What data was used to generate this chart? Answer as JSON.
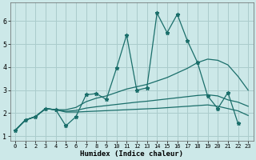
{
  "bg_color": "#cce8e8",
  "grid_color": "#aacccc",
  "line_color": "#1a6e6a",
  "xlabel": "Humidex (Indice chaleur)",
  "xlim": [
    -0.5,
    23.5
  ],
  "ylim": [
    0.8,
    6.8
  ],
  "yticks": [
    1,
    2,
    3,
    4,
    5,
    6
  ],
  "xticks": [
    0,
    1,
    2,
    3,
    4,
    5,
    6,
    7,
    8,
    9,
    10,
    11,
    12,
    13,
    14,
    15,
    16,
    17,
    18,
    19,
    20,
    21,
    22,
    23
  ],
  "line1_x": [
    0,
    1,
    2,
    3,
    4,
    5,
    6,
    7,
    8,
    9,
    10,
    11,
    12,
    13,
    14,
    15,
    16,
    17,
    18,
    19,
    20,
    21,
    22
  ],
  "line1_y": [
    1.25,
    1.7,
    1.85,
    2.2,
    2.15,
    1.45,
    1.85,
    2.8,
    2.85,
    2.6,
    3.95,
    5.4,
    3.0,
    3.1,
    6.35,
    5.5,
    6.3,
    5.15,
    4.2,
    2.75,
    2.2,
    2.9,
    1.55
  ],
  "line2_x": [
    0,
    1,
    2,
    3,
    4,
    5,
    6,
    7,
    8,
    9,
    10,
    11,
    12,
    13,
    14,
    15,
    16,
    17,
    18,
    19,
    20,
    21,
    22,
    23
  ],
  "line2_y": [
    1.25,
    1.7,
    1.85,
    2.2,
    2.15,
    2.15,
    2.25,
    2.5,
    2.65,
    2.75,
    2.9,
    3.05,
    3.15,
    3.25,
    3.4,
    3.55,
    3.75,
    3.95,
    4.2,
    4.35,
    4.3,
    4.1,
    3.6,
    3.0
  ],
  "line3_x": [
    0,
    1,
    2,
    3,
    4,
    5,
    6,
    7,
    8,
    9,
    10,
    11,
    12,
    13,
    14,
    15,
    16,
    17,
    18,
    19,
    20,
    21,
    22,
    23
  ],
  "line3_y": [
    1.25,
    1.7,
    1.85,
    2.2,
    2.15,
    2.08,
    2.12,
    2.22,
    2.28,
    2.33,
    2.38,
    2.43,
    2.48,
    2.52,
    2.57,
    2.62,
    2.67,
    2.72,
    2.77,
    2.8,
    2.75,
    2.58,
    2.48,
    2.3
  ],
  "line4_x": [
    0,
    1,
    2,
    3,
    4,
    5,
    6,
    7,
    8,
    9,
    10,
    11,
    12,
    13,
    14,
    15,
    16,
    17,
    18,
    19,
    20,
    21,
    22,
    23
  ],
  "line4_y": [
    1.25,
    1.7,
    1.85,
    2.2,
    2.15,
    2.05,
    2.05,
    2.07,
    2.09,
    2.11,
    2.13,
    2.15,
    2.17,
    2.19,
    2.21,
    2.24,
    2.27,
    2.3,
    2.33,
    2.36,
    2.3,
    2.2,
    2.1,
    1.9
  ]
}
